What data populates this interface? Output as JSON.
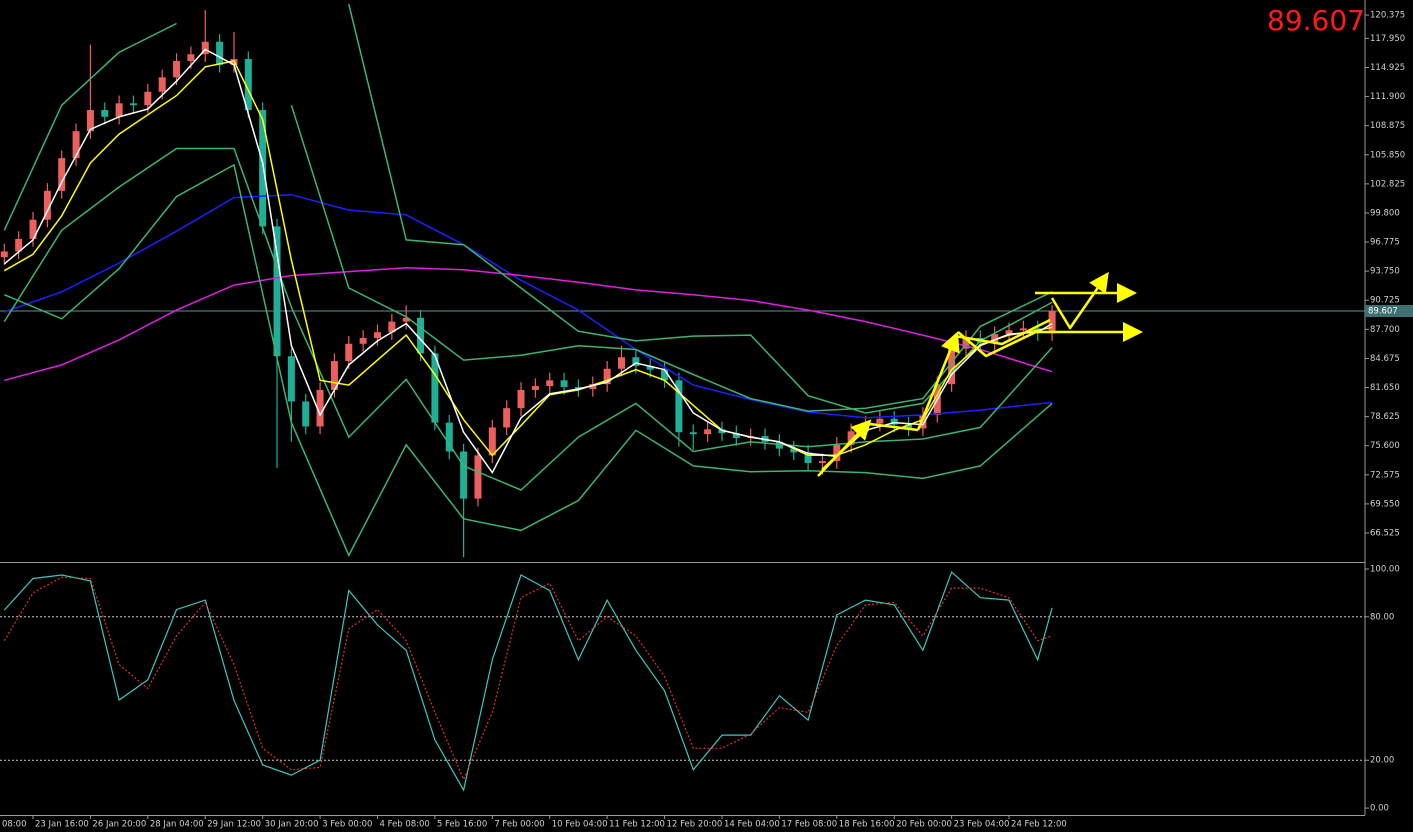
{
  "chart_data": [
    {
      "type": "candlestick",
      "x": [
        4,
        6,
        8,
        10,
        12,
        14,
        16,
        18,
        20,
        22,
        24,
        26,
        28,
        30,
        32,
        34,
        36,
        38,
        40,
        42,
        44,
        46,
        48,
        50,
        52,
        54,
        56,
        58,
        60,
        62,
        64,
        66,
        68,
        70,
        72,
        74,
        76,
        78,
        80,
        82,
        84,
        86,
        88,
        90,
        92,
        94,
        96,
        98,
        100,
        102,
        104,
        106,
        108,
        110,
        112,
        114,
        116,
        118,
        120,
        122,
        124,
        126,
        128,
        130,
        132,
        134,
        136,
        138,
        140,
        142,
        144,
        146,
        148,
        150
      ],
      "open": [
        95.2,
        95.8,
        97.1,
        99.1,
        102.1,
        105.5,
        108.3,
        110.5,
        109.8,
        111.2,
        111.0,
        112.4,
        113.9,
        115.6,
        116.3,
        117.6,
        115.2,
        115.8,
        110.5,
        98.4,
        84.9,
        80.2,
        77.6,
        81.4,
        84.4,
        86.2,
        86.8,
        87.4,
        88.5,
        88.9,
        85.2,
        78.0,
        75.0,
        70.1,
        74.6,
        77.5,
        79.5,
        81.4,
        81.8,
        82.4,
        81.7,
        81.5,
        82.0,
        83.6,
        84.8,
        83.9,
        83.5,
        82.4,
        77.0,
        76.8,
        77.3,
        76.9,
        76.4,
        76.6,
        76.0,
        75.3,
        74.9,
        73.8,
        74.0,
        75.7,
        77.1,
        77.9,
        78.4,
        77.8,
        77.4,
        78.8,
        82.0,
        85.7,
        86.8,
        86.3,
        87.2,
        87.6,
        87.8,
        87.3
      ],
      "high": [
        96.6,
        97.9,
        99.9,
        102.9,
        106.3,
        109.1,
        117.3,
        111.3,
        112.0,
        112.0,
        113.2,
        114.7,
        116.4,
        117.1,
        120.9,
        118.4,
        118.6,
        116.6,
        111.3,
        99.2,
        85.7,
        81.0,
        82.2,
        85.2,
        87.0,
        87.6,
        88.2,
        89.3,
        90.2,
        89.7,
        86.0,
        78.8,
        75.8,
        75.4,
        78.3,
        80.3,
        82.2,
        82.6,
        83.2,
        83.2,
        82.5,
        82.8,
        84.4,
        86.0,
        85.6,
        84.7,
        84.3,
        83.2,
        77.8,
        78.1,
        78.1,
        77.7,
        77.4,
        77.4,
        76.8,
        76.1,
        75.7,
        74.8,
        76.5,
        77.9,
        78.7,
        79.2,
        79.2,
        78.6,
        79.6,
        82.8,
        86.5,
        87.6,
        87.6,
        88.0,
        88.4,
        88.6,
        88.6,
        90.2
      ],
      "low": [
        94.4,
        95.0,
        96.3,
        98.3,
        101.3,
        104.7,
        107.5,
        109.0,
        109.0,
        110.2,
        110.2,
        111.6,
        113.1,
        114.8,
        115.5,
        114.4,
        114.4,
        109.7,
        97.6,
        73.3,
        76.0,
        76.8,
        76.8,
        80.6,
        83.6,
        85.4,
        86.0,
        86.6,
        87.7,
        84.4,
        77.2,
        74.2,
        64.0,
        69.3,
        73.8,
        76.7,
        78.7,
        80.6,
        81.0,
        80.9,
        80.7,
        80.7,
        81.2,
        82.8,
        83.1,
        82.7,
        81.6,
        75.5,
        75.2,
        76.0,
        76.1,
        75.6,
        75.6,
        75.2,
        74.5,
        74.1,
        73.0,
        72.6,
        73.2,
        74.9,
        76.3,
        77.1,
        77.0,
        76.6,
        76.6,
        78.0,
        81.2,
        84.9,
        85.5,
        85.5,
        86.4,
        86.8,
        86.5,
        86.5
      ],
      "close": [
        95.8,
        97.1,
        99.1,
        102.1,
        105.5,
        108.3,
        110.5,
        109.8,
        111.2,
        111.0,
        112.4,
        113.9,
        115.6,
        116.3,
        117.6,
        115.2,
        115.8,
        110.5,
        98.4,
        84.9,
        80.2,
        77.6,
        81.4,
        84.4,
        86.2,
        86.8,
        87.4,
        88.5,
        88.9,
        85.2,
        78.0,
        75.0,
        70.1,
        74.6,
        77.5,
        79.5,
        81.4,
        81.8,
        82.4,
        81.7,
        81.5,
        82.0,
        83.6,
        84.8,
        83.9,
        83.5,
        82.4,
        77.0,
        76.8,
        77.3,
        76.9,
        76.4,
        76.6,
        76.0,
        75.3,
        74.9,
        73.8,
        74.0,
        75.7,
        77.1,
        77.9,
        78.4,
        77.8,
        77.4,
        78.8,
        82.0,
        85.7,
        86.8,
        86.3,
        87.2,
        87.6,
        87.8,
        87.3,
        89.607
      ],
      "up_color": "#ec5f5f",
      "down_color": "#1fae96",
      "lines": [
        {
          "color": "#1e1eff",
          "x": [
            4,
            12,
            20,
            28,
            36,
            44,
            52,
            60,
            68,
            76,
            84,
            92,
            100,
            108,
            116,
            124,
            132,
            140,
            150
          ],
          "values": [
            89.5,
            91.6,
            94.6,
            97.9,
            101.4,
            101.7,
            100.1,
            99.6,
            96.5,
            92.8,
            89.7,
            85.6,
            81.9,
            80.4,
            79.1,
            78.5,
            78.8,
            79.3,
            80.1
          ]
        },
        {
          "color": "#e020e0",
          "x": [
            4,
            12,
            20,
            28,
            36,
            44,
            52,
            60,
            68,
            76,
            84,
            92,
            100,
            108,
            116,
            124,
            132,
            140,
            150
          ],
          "values": [
            82.4,
            84.0,
            86.6,
            89.7,
            92.3,
            93.3,
            93.7,
            94.1,
            93.9,
            93.3,
            92.6,
            91.8,
            91.3,
            90.7,
            89.7,
            88.5,
            87.1,
            85.6,
            83.3
          ]
        },
        {
          "color": "#3cb371",
          "x": [
            4,
            12,
            20,
            28,
            36,
            44,
            52,
            60,
            68,
            76,
            84,
            92,
            100,
            108,
            116,
            124,
            132,
            140,
            150
          ],
          "values": [
            null,
            null,
            null,
            null,
            null,
            null,
            121.5,
            97.0,
            96.5,
            92.0,
            87.5,
            86.5,
            87.0,
            87.1,
            80.8,
            79.0,
            80.0,
            86.5,
            90.5
          ]
        },
        {
          "color": "#3cb371",
          "x": [
            4,
            12,
            20,
            28,
            36,
            44,
            52,
            60,
            68,
            76,
            84,
            92,
            100,
            108,
            116,
            124,
            132,
            140,
            150
          ],
          "values": [
            91.3,
            88.8,
            94.0,
            101.5,
            104.8,
            78.0,
            64.2,
            75.7,
            68.0,
            66.8,
            69.9,
            77.2,
            73.5,
            72.9,
            73.0,
            72.8,
            72.2,
            73.5,
            80.0
          ]
        },
        {
          "color": "#3cb371",
          "x": [
            4,
            12,
            20,
            28,
            36,
            44,
            52,
            60,
            68,
            76,
            84,
            92,
            100,
            108,
            116,
            124,
            132,
            140,
            150
          ],
          "values": [
            98.0,
            111.0,
            116.5,
            119.5,
            null,
            111.0,
            92.0,
            89.0,
            84.5,
            85.0,
            86.0,
            85.6,
            83.0,
            80.5,
            79.2,
            79.5,
            80.5,
            88.0,
            91.6
          ]
        },
        {
          "color": "#3cb371",
          "x": [
            4,
            12,
            20,
            28,
            36,
            44,
            52,
            60,
            68,
            76,
            84,
            92,
            100,
            108,
            116,
            124,
            132,
            140,
            150
          ],
          "values": [
            88.5,
            98.0,
            102.5,
            106.5,
            106.5,
            90.0,
            76.5,
            82.5,
            73.5,
            71.0,
            76.5,
            80.0,
            75.0,
            76.0,
            75.5,
            76.0,
            76.3,
            77.5,
            85.8
          ]
        },
        {
          "color": "#ffff00",
          "x": [
            4,
            8,
            12,
            16,
            20,
            24,
            28,
            32,
            36,
            40,
            44,
            48,
            52,
            56,
            60,
            64,
            68,
            72,
            76,
            80,
            84,
            88,
            92,
            96,
            100,
            104,
            108,
            112,
            116,
            120,
            124,
            128,
            132,
            136,
            140,
            144,
            148,
            150
          ],
          "values": [
            93.8,
            95.5,
            99.5,
            105.0,
            108.0,
            110.0,
            112.0,
            115.0,
            115.6,
            109.5,
            94.9,
            82.4,
            81.9,
            84.5,
            87.1,
            83.0,
            78.3,
            74.6,
            77.7,
            80.9,
            81.4,
            82.4,
            83.5,
            82.4,
            79.8,
            77.2,
            76.5,
            76.0,
            74.6,
            74.6,
            75.7,
            77.2,
            78.3,
            83.5,
            86.1,
            87.1,
            87.6,
            87.9
          ]
        },
        {
          "color": "#ffffff",
          "x": [
            4,
            8,
            12,
            16,
            20,
            24,
            28,
            32,
            36,
            40,
            44,
            48,
            52,
            56,
            60,
            64,
            68,
            72,
            76,
            80,
            84,
            88,
            92,
            96,
            100,
            104,
            108,
            112,
            116,
            120,
            124,
            128,
            132,
            136,
            140,
            144,
            148,
            150
          ],
          "values": [
            94.5,
            97.0,
            103.0,
            108.5,
            109.8,
            110.6,
            113.5,
            116.8,
            115.2,
            105.0,
            86.0,
            78.8,
            84.0,
            86.5,
            88.3,
            85.0,
            77.0,
            72.8,
            78.5,
            81.0,
            81.5,
            82.2,
            84.2,
            83.5,
            79.0,
            77.2,
            76.5,
            76.0,
            74.8,
            74.5,
            77.2,
            78.0,
            77.8,
            83.0,
            86.0,
            87.2,
            87.4,
            88.3
          ]
        }
      ],
      "xlim": [
        3.4,
        193.6
      ],
      "ylim": [
        63.51,
        121.94
      ],
      "yticks": [
        120.375,
        {
          "value": 117.95,
          "label": "117.950"
        },
        114.925,
        {
          "value": 111.9,
          "label": "111.900"
        },
        108.875,
        {
          "value": 105.85,
          "label": "105.850"
        },
        102.825,
        {
          "value": 99.8,
          "label": "99.800"
        },
        96.775,
        {
          "value": 93.75,
          "label": "93.750"
        },
        90.725,
        {
          "value": 87.7,
          "label": "87.700"
        },
        84.675,
        {
          "value": 81.65,
          "label": "81.650"
        },
        78.625,
        {
          "value": 75.6,
          "label": "75.600"
        },
        72.575,
        {
          "value": 69.55,
          "label": "69.550"
        },
        66.525
      ],
      "current_price": 89.607
    },
    {
      "type": "line",
      "x": [
        4,
        8,
        12,
        16,
        20,
        24,
        28,
        32,
        36,
        40,
        44,
        48,
        52,
        56,
        60,
        64,
        68,
        72,
        76,
        80,
        84,
        88,
        92,
        96,
        100,
        104,
        108,
        112,
        116,
        120,
        124,
        128,
        132,
        136,
        140,
        144,
        148,
        150
      ],
      "series": [
        {
          "color": "#3cc8c0",
          "values": [
            82.8,
            96.0,
            97.5,
            95.0,
            45.2,
            53.6,
            83.0,
            87.0,
            45.0,
            18.0,
            13.8,
            20.0,
            91.0,
            76.6,
            66.0,
            28.5,
            7.5,
            62.0,
            97.5,
            91.0,
            62.0,
            87.0,
            66.0,
            49.0,
            16.0,
            30.5,
            30.5,
            47.0,
            36.8,
            80.8,
            87.0,
            85.0,
            66.0,
            98.7,
            88.0,
            87.0,
            62.0,
            83.7
          ]
        },
        {
          "color": "#e03030",
          "dash": true,
          "values": [
            70.0,
            90.0,
            96.5,
            96.0,
            60.0,
            50.0,
            72.0,
            86.0,
            60.0,
            25.0,
            16.0,
            17.0,
            75.0,
            83.0,
            70.0,
            40.0,
            12.0,
            40.0,
            88.0,
            94.0,
            70.0,
            80.0,
            72.0,
            55.0,
            25.0,
            25.0,
            31.0,
            42.0,
            40.0,
            68.0,
            85.0,
            86.0,
            72.0,
            92.0,
            92.0,
            88.0,
            70.0,
            72.0
          ]
        }
      ],
      "xlim": [
        3.4,
        193.6
      ],
      "ylim": [
        -2.9,
        102.5
      ],
      "yticks": [
        {
          "value": 100,
          "label": "100.00"
        },
        {
          "value": 80,
          "label": "80.00"
        },
        {
          "value": 20,
          "label": "20.00"
        },
        {
          "value": 0,
          "label": "0.00"
        }
      ],
      "levels": [
        80,
        20
      ],
      "xticks": [
        {
          "value": 0,
          "label": "08:00"
        },
        {
          "value": 8,
          "label": "23 Jan 16:00"
        },
        {
          "value": 16,
          "label": "26 Jan 20:00"
        },
        {
          "value": 24,
          "label": "28 Jan 04:00"
        },
        {
          "value": 32,
          "label": "29 Jan 12:00"
        },
        {
          "value": 40,
          "label": "30 Jan 20:00"
        },
        {
          "value": 48,
          "label": "3 Feb 00:00"
        },
        {
          "value": 56,
          "label": "4 Feb 08:00"
        },
        {
          "value": 64,
          "label": "5 Feb 16:00"
        },
        {
          "value": 72,
          "label": "7 Feb 00:00"
        },
        {
          "value": 80,
          "label": "10 Feb 04:00"
        },
        {
          "value": 88,
          "label": "11 Feb 12:00"
        },
        {
          "value": 96,
          "label": "12 Feb 20:00"
        },
        {
          "value": 104,
          "label": "14 Feb 04:00"
        },
        {
          "value": 112,
          "label": "17 Feb 08:00"
        },
        {
          "value": 120,
          "label": "18 Feb 16:00"
        },
        {
          "value": 128,
          "label": "20 Feb 00:00"
        },
        {
          "value": 136,
          "label": "23 Feb 04:00"
        },
        {
          "value": 144,
          "label": "24 Feb 12:00"
        }
      ]
    }
  ]
}
